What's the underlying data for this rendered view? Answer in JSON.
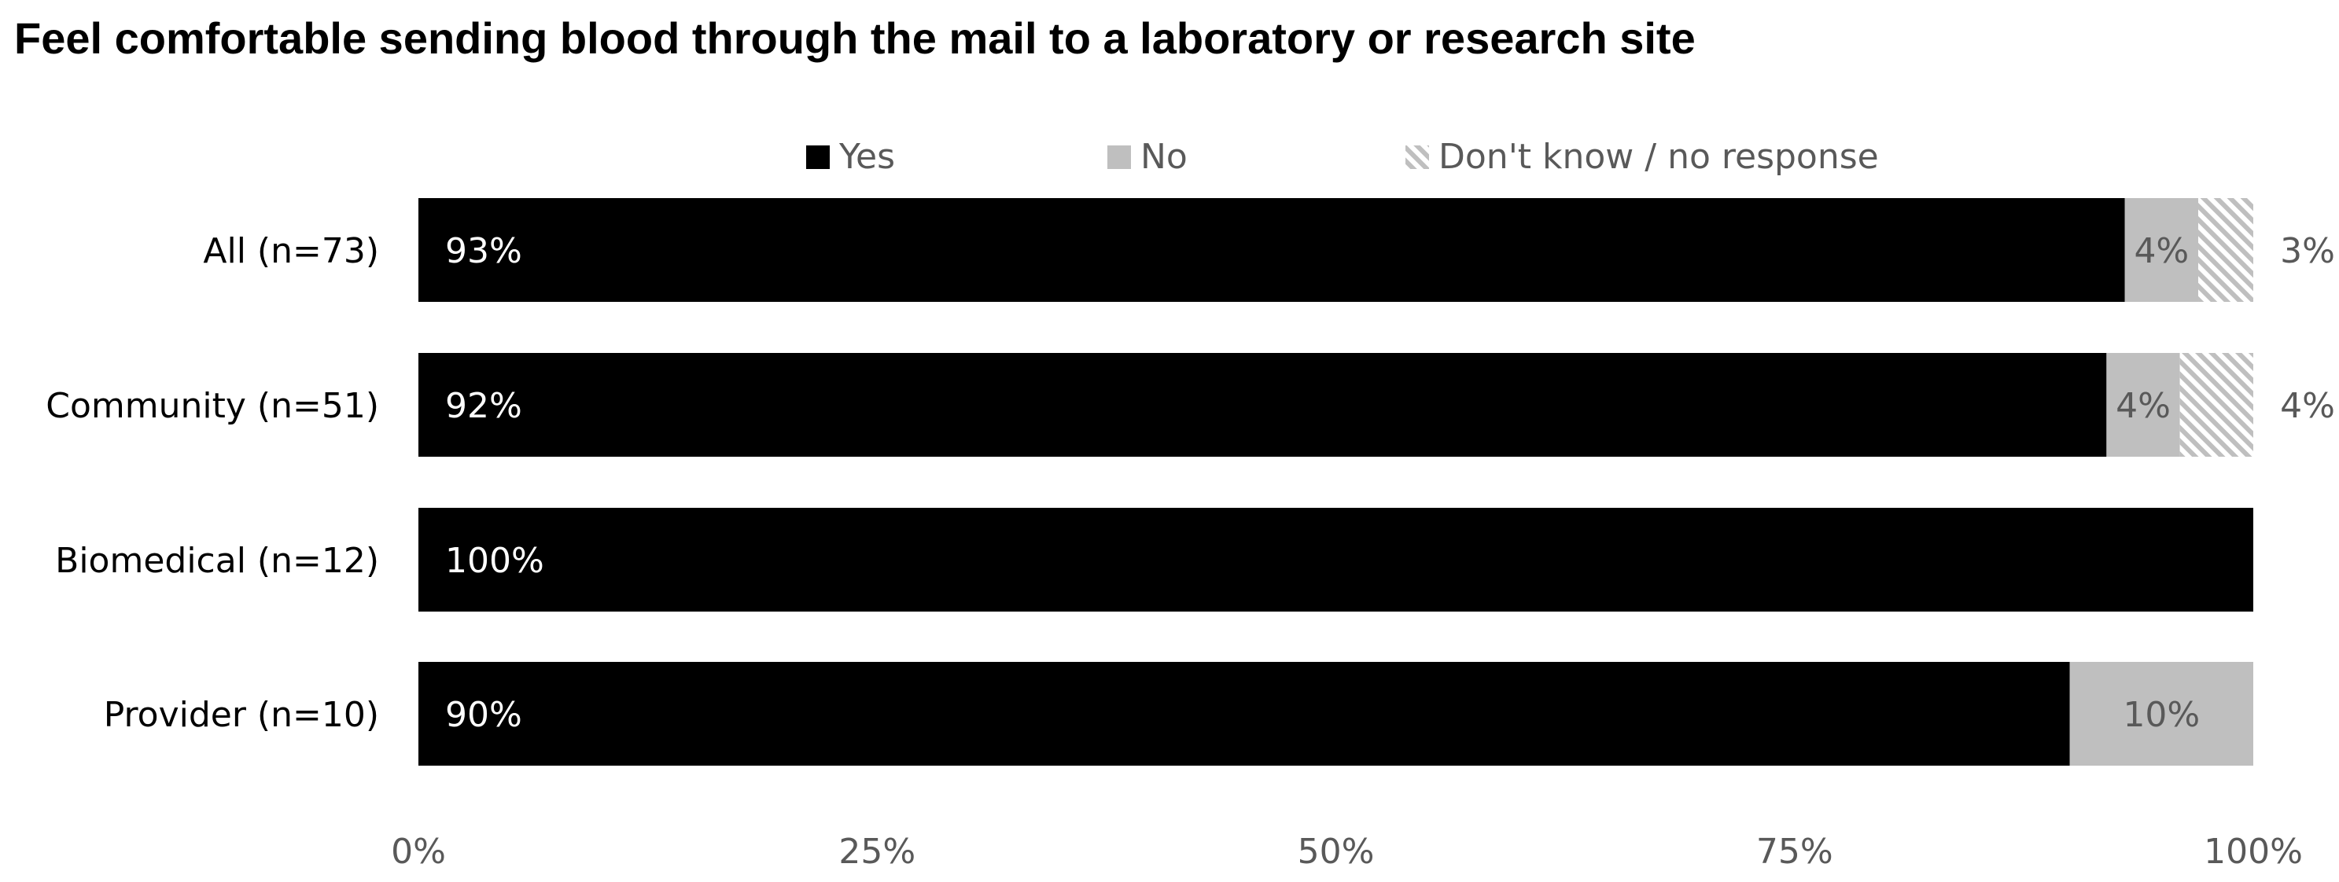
{
  "chart_data": {
    "type": "bar",
    "orientation": "horizontal",
    "stacked": true,
    "title": "Feel comfortable sending blood through the mail to a laboratory or research site",
    "categories": [
      "All (n=73)",
      "Community (n=51)",
      "Biomedical (n=12)",
      "Provider (n=10)"
    ],
    "series": [
      {
        "name": "Yes",
        "values": [
          93,
          92,
          100,
          90
        ],
        "labels": [
          "93%",
          "92%",
          "100%",
          "90%"
        ],
        "color": "#000000",
        "pattern": "solid"
      },
      {
        "name": "No",
        "values": [
          4,
          4,
          0,
          10
        ],
        "labels": [
          "4%",
          "4%",
          "",
          "10%"
        ],
        "color": "#bfbfbf",
        "pattern": "solid"
      },
      {
        "name": "Don't know / no response",
        "values": [
          3,
          4,
          0,
          0
        ],
        "labels": [
          "3%",
          "4%",
          "",
          ""
        ],
        "color": "#bfbfbf",
        "pattern": "hatched"
      }
    ],
    "xlim": [
      0,
      100
    ],
    "x_ticks": [
      "0%",
      "25%",
      "50%",
      "75%",
      "100%"
    ],
    "legend_position": "top",
    "grid": false
  }
}
